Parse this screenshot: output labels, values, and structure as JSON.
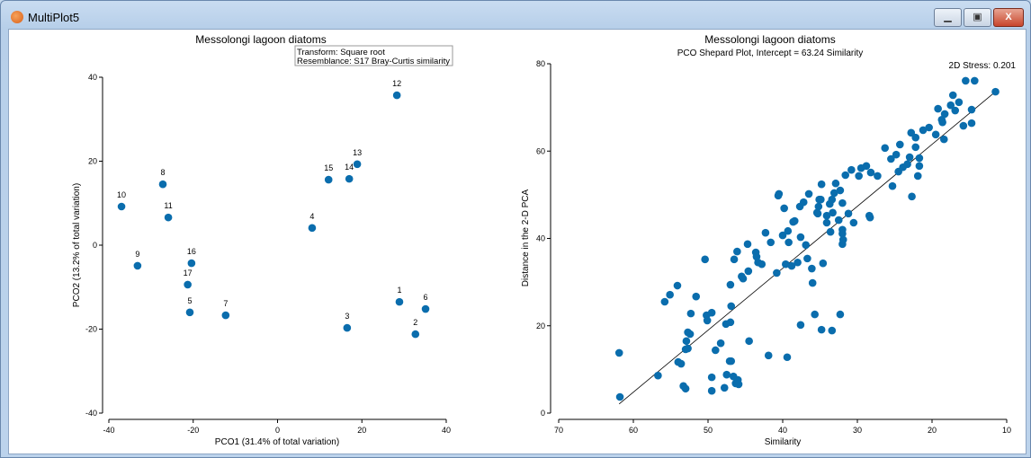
{
  "window": {
    "title": "MultiPlot5",
    "minimize": "▁",
    "maximize": "▣",
    "close": "X"
  },
  "colors": {
    "point": "#0a6dad",
    "line": "#000000"
  },
  "chart_data": [
    {
      "type": "scatter",
      "title": "Messolongi lagoon diatoms",
      "info_box": [
        "Transform: Square root",
        "Resemblance: S17 Bray-Curtis similarity"
      ],
      "xlabel": "PCO1 (31.4% of total variation)",
      "ylabel": "PCO2 (13.2% of total variation)",
      "xlim": [
        -40,
        40
      ],
      "ylim": [
        -40,
        40
      ],
      "xticks": [
        -40,
        -20,
        0,
        20,
        40
      ],
      "yticks": [
        -40,
        -20,
        0,
        20,
        40
      ],
      "grid": false,
      "points": [
        {
          "label": "1",
          "x": 28.9,
          "y": -13.5
        },
        {
          "label": "2",
          "x": 32.7,
          "y": -21.2
        },
        {
          "label": "3",
          "x": 16.5,
          "y": -19.7
        },
        {
          "label": "4",
          "x": 8.2,
          "y": 4.1
        },
        {
          "label": "5",
          "x": -20.8,
          "y": -16.0
        },
        {
          "label": "6",
          "x": 35.1,
          "y": -15.2
        },
        {
          "label": "7",
          "x": -12.3,
          "y": -16.7
        },
        {
          "label": "8",
          "x": -27.2,
          "y": 14.5
        },
        {
          "label": "9",
          "x": -33.2,
          "y": -4.9
        },
        {
          "label": "10",
          "x": -37.0,
          "y": 9.2
        },
        {
          "label": "11",
          "x": -25.9,
          "y": 6.6
        },
        {
          "label": "12",
          "x": 28.3,
          "y": 35.7
        },
        {
          "label": "13",
          "x": 18.9,
          "y": 19.3
        },
        {
          "label": "14",
          "x": 17.0,
          "y": 15.8
        },
        {
          "label": "15",
          "x": 12.1,
          "y": 15.6
        },
        {
          "label": "16",
          "x": -20.4,
          "y": -4.3
        },
        {
          "label": "17",
          "x": -21.3,
          "y": -9.4
        }
      ]
    },
    {
      "type": "scatter",
      "title": "Messolongi lagoon diatoms",
      "subtitle": "PCO Shepard Plot, Intercept = 63.24 Similarity",
      "annotation": "2D Stress: 0.201",
      "xlabel": "Similarity",
      "ylabel": "Distance in the 2-D PCA",
      "xlim": [
        70,
        10
      ],
      "ylim": [
        0,
        80
      ],
      "xticks": [
        70,
        60,
        50,
        40,
        30,
        20,
        10
      ],
      "yticks": [
        0,
        20,
        40,
        60,
        80
      ],
      "grid": false,
      "fit_line": [
        [
          61.9,
          2.1
        ],
        [
          11.5,
          73.6
        ]
      ],
      "points": [
        [
          61.9,
          13.8
        ],
        [
          61.8,
          3.7
        ],
        [
          56.7,
          8.6
        ],
        [
          55.8,
          25.5
        ],
        [
          55.1,
          27.1
        ],
        [
          54.1,
          29.2
        ],
        [
          54.0,
          11.7
        ],
        [
          53.6,
          11.3
        ],
        [
          53.3,
          6.2
        ],
        [
          53.0,
          5.6
        ],
        [
          53.0,
          14.6
        ],
        [
          52.9,
          16.5
        ],
        [
          52.7,
          14.8
        ],
        [
          52.7,
          18.5
        ],
        [
          52.3,
          22.8
        ],
        [
          52.4,
          18.1
        ],
        [
          51.6,
          26.7
        ],
        [
          50.4,
          35.2
        ],
        [
          50.2,
          22.4
        ],
        [
          50.1,
          21.2
        ],
        [
          49.5,
          23.0
        ],
        [
          49.5,
          8.2
        ],
        [
          49.5,
          5.1
        ],
        [
          49.0,
          14.4
        ],
        [
          48.3,
          16.0
        ],
        [
          47.8,
          5.8
        ],
        [
          47.6,
          20.4
        ],
        [
          47.5,
          8.8
        ],
        [
          47.0,
          29.4
        ],
        [
          46.9,
          24.5
        ],
        [
          46.5,
          35.2
        ],
        [
          47.1,
          11.9
        ],
        [
          46.9,
          11.9
        ],
        [
          47.0,
          20.8
        ],
        [
          46.6,
          8.4
        ],
        [
          46.3,
          6.8
        ],
        [
          46.1,
          37.0
        ],
        [
          46.0,
          7.6
        ],
        [
          45.9,
          6.6
        ],
        [
          45.5,
          31.3
        ],
        [
          45.3,
          30.8
        ],
        [
          44.6,
          32.5
        ],
        [
          44.7,
          38.7
        ],
        [
          44.5,
          16.5
        ],
        [
          43.6,
          36.8
        ],
        [
          43.5,
          35.8
        ],
        [
          43.3,
          34.5
        ],
        [
          42.8,
          34.1
        ],
        [
          42.3,
          41.3
        ],
        [
          41.9,
          13.2
        ],
        [
          41.6,
          39.1
        ],
        [
          40.8,
          32.1
        ],
        [
          40.6,
          49.8
        ],
        [
          40.5,
          50.2
        ],
        [
          40.0,
          40.7
        ],
        [
          39.8,
          46.9
        ],
        [
          39.6,
          34.1
        ],
        [
          39.4,
          12.8
        ],
        [
          39.3,
          41.7
        ],
        [
          39.2,
          39.1
        ],
        [
          38.8,
          33.7
        ],
        [
          38.6,
          43.8
        ],
        [
          38.4,
          44.0
        ],
        [
          38.0,
          34.5
        ],
        [
          37.7,
          47.3
        ],
        [
          37.6,
          40.3
        ],
        [
          37.6,
          20.2
        ],
        [
          37.2,
          48.3
        ],
        [
          36.9,
          38.5
        ],
        [
          36.7,
          35.4
        ],
        [
          36.5,
          50.2
        ],
        [
          36.1,
          33.1
        ],
        [
          36.0,
          29.8
        ],
        [
          35.7,
          22.6
        ],
        [
          35.4,
          45.9
        ],
        [
          35.3,
          45.7
        ],
        [
          35.2,
          47.3
        ],
        [
          35.1,
          48.9
        ],
        [
          34.9,
          48.9
        ],
        [
          34.8,
          52.4
        ],
        [
          34.8,
          19.1
        ],
        [
          34.6,
          34.3
        ],
        [
          34.1,
          45.2
        ],
        [
          34.1,
          43.6
        ],
        [
          33.7,
          47.9
        ],
        [
          33.6,
          41.5
        ],
        [
          33.4,
          18.9
        ],
        [
          33.4,
          48.9
        ],
        [
          33.3,
          45.9
        ],
        [
          33.1,
          50.4
        ],
        [
          32.9,
          52.6
        ],
        [
          32.5,
          44.2
        ],
        [
          32.3,
          22.6
        ],
        [
          32.3,
          51.0
        ],
        [
          32.0,
          48.1
        ],
        [
          32.0,
          42.0
        ],
        [
          32.0,
          41.1
        ],
        [
          32.0,
          38.7
        ],
        [
          31.9,
          39.7
        ],
        [
          31.6,
          54.5
        ],
        [
          31.2,
          45.7
        ],
        [
          30.8,
          55.7
        ],
        [
          30.5,
          43.6
        ],
        [
          29.8,
          54.3
        ],
        [
          29.5,
          56.1
        ],
        [
          28.8,
          56.6
        ],
        [
          28.4,
          45.2
        ],
        [
          28.3,
          44.8
        ],
        [
          28.2,
          55.1
        ],
        [
          27.3,
          54.3
        ],
        [
          26.3,
          60.7
        ],
        [
          25.5,
          58.2
        ],
        [
          25.3,
          52.0
        ],
        [
          24.8,
          59.2
        ],
        [
          24.5,
          55.3
        ],
        [
          24.3,
          61.5
        ],
        [
          23.9,
          56.3
        ],
        [
          23.3,
          57.0
        ],
        [
          23.0,
          58.6
        ],
        [
          22.8,
          64.2
        ],
        [
          22.7,
          49.6
        ],
        [
          22.2,
          63.1
        ],
        [
          22.2,
          60.9
        ],
        [
          21.9,
          54.3
        ],
        [
          21.7,
          56.6
        ],
        [
          21.7,
          58.4
        ],
        [
          21.2,
          64.8
        ],
        [
          20.4,
          65.4
        ],
        [
          19.5,
          63.8
        ],
        [
          19.2,
          69.7
        ],
        [
          18.7,
          67.2
        ],
        [
          18.6,
          66.6
        ],
        [
          18.4,
          62.7
        ],
        [
          18.3,
          68.5
        ],
        [
          17.5,
          70.5
        ],
        [
          17.2,
          72.8
        ],
        [
          16.9,
          69.3
        ],
        [
          16.4,
          71.2
        ],
        [
          15.8,
          65.8
        ],
        [
          15.5,
          76.1
        ],
        [
          14.7,
          66.4
        ],
        [
          14.7,
          69.5
        ],
        [
          14.3,
          76.1
        ],
        [
          11.5,
          73.6
        ]
      ]
    }
  ]
}
